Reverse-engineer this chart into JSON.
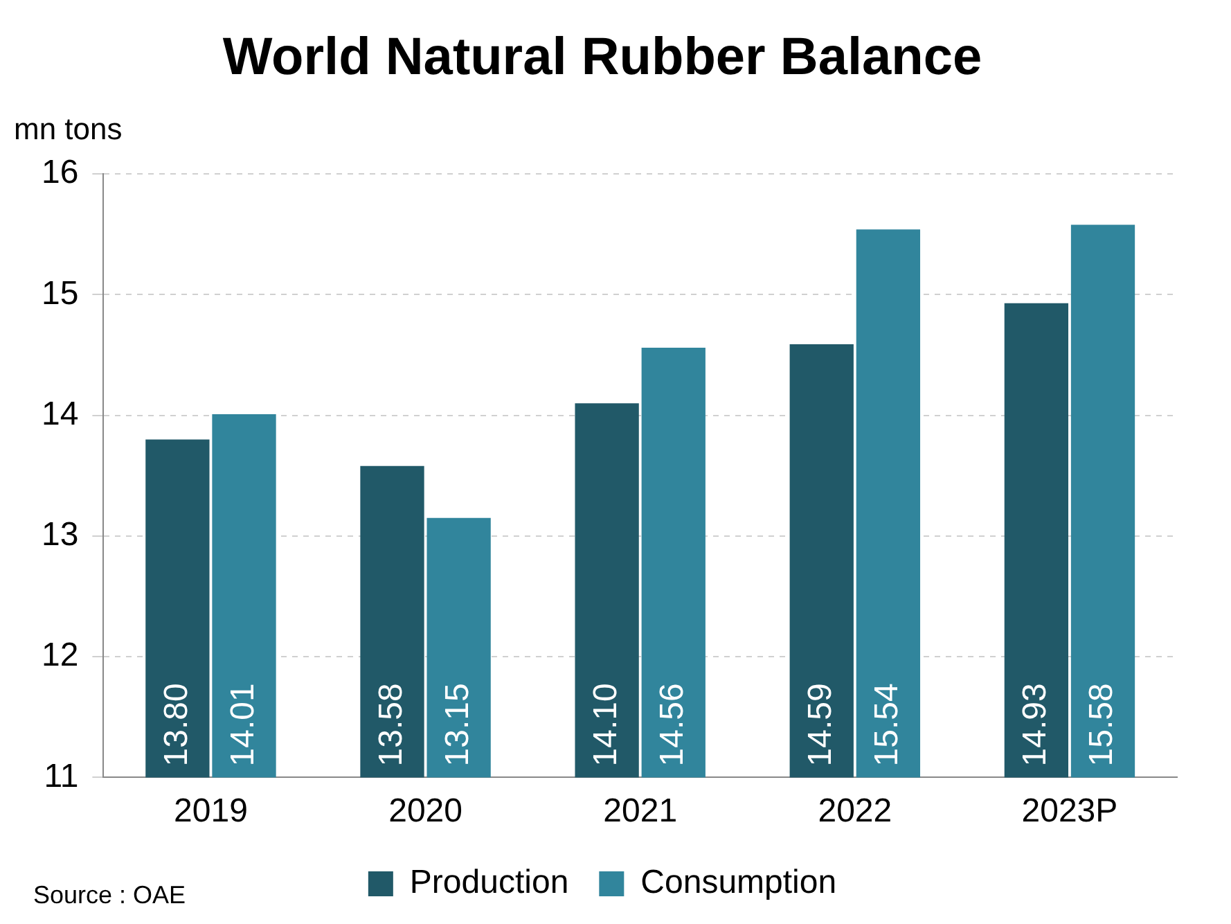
{
  "chart_data": {
    "type": "bar",
    "title": "World Natural Rubber Balance",
    "ylabel": "mn tons",
    "categories": [
      "2019",
      "2020",
      "2021",
      "2022",
      "2023P"
    ],
    "series": [
      {
        "name": "Production",
        "color": "#215968",
        "values": [
          13.8,
          13.58,
          14.1,
          14.59,
          14.93
        ],
        "value_labels": [
          "13.80",
          "13.58",
          "14.10",
          "14.59",
          "14.93"
        ]
      },
      {
        "name": "Consumption",
        "color": "#31859c",
        "values": [
          14.01,
          13.15,
          14.56,
          15.54,
          15.58
        ],
        "value_labels": [
          "14.01",
          "13.15",
          "14.56",
          "15.54",
          "15.58"
        ]
      }
    ],
    "ylim": [
      11,
      16
    ],
    "yticks": [
      11,
      12,
      13,
      14,
      15,
      16
    ],
    "grid": "y",
    "legend": "bottom",
    "annotations": [
      "Source : OAE"
    ]
  }
}
